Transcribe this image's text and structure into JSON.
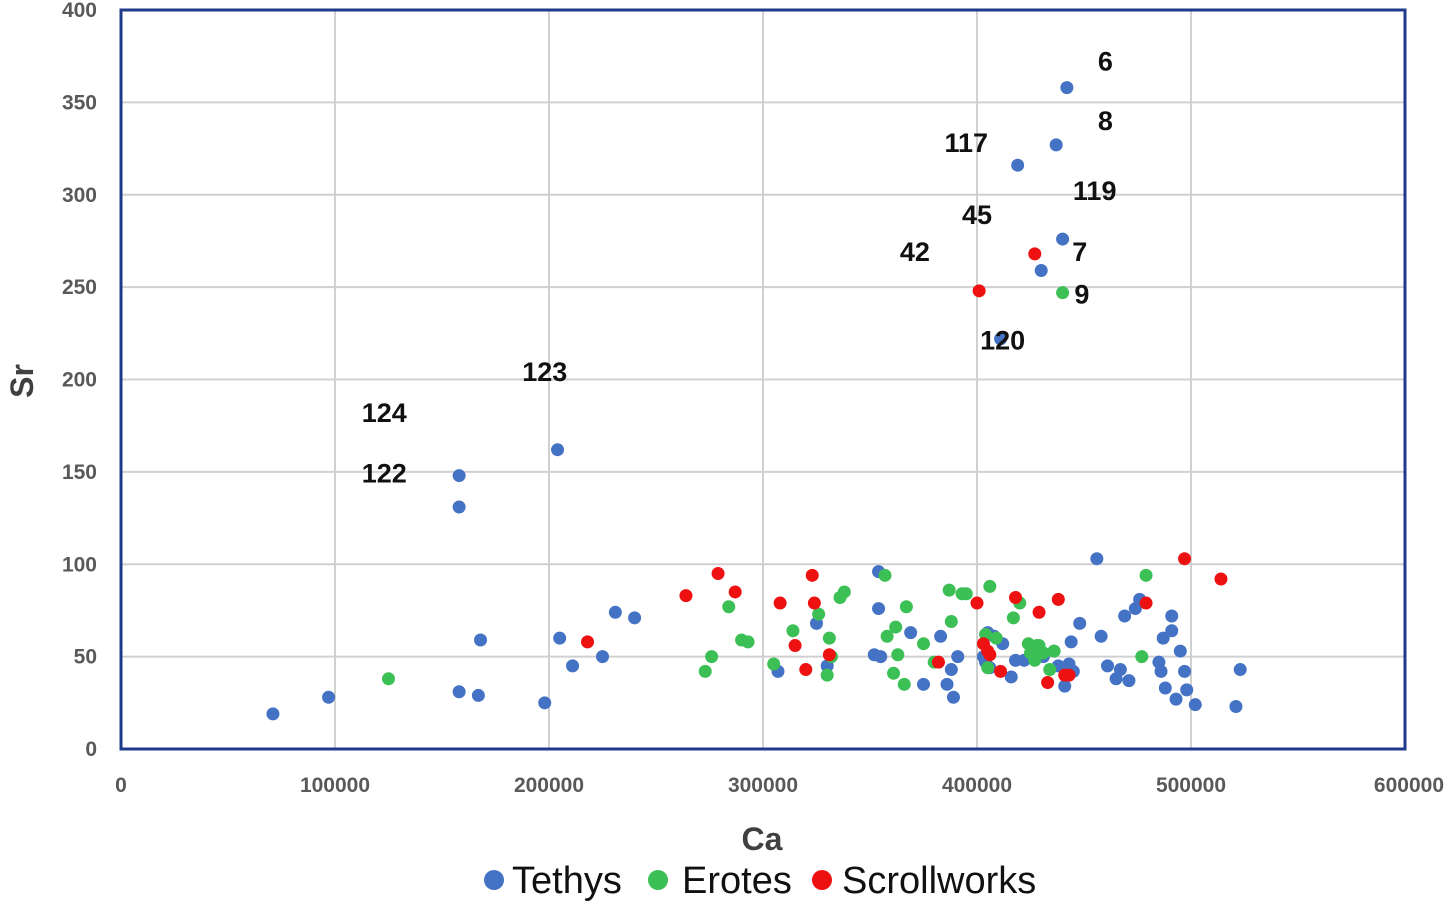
{
  "chart_data": {
    "type": "scatter",
    "title": "",
    "xlabel": "Ca",
    "ylabel": "Sr",
    "xlim": [
      0,
      600000
    ],
    "ylim": [
      0,
      400
    ],
    "x_ticks": [
      0,
      100000,
      200000,
      300000,
      400000,
      500000,
      600000
    ],
    "y_ticks": [
      0,
      50,
      100,
      150,
      200,
      250,
      300,
      350,
      400
    ],
    "x_tick_labels": [
      "0",
      "100000",
      "200000",
      "300000",
      "400000",
      "500000",
      "600000"
    ],
    "y_tick_labels": [
      "0",
      "50",
      "100",
      "150",
      "200",
      "250",
      "300",
      "350",
      "400"
    ],
    "grid": true,
    "legend_position": "bottom",
    "colors": {
      "Tethys": "#4472c4",
      "Erotes": "#3cbf54",
      "Scrollworks": "#ee1111",
      "frame": "#1f3a8a"
    },
    "series": [
      {
        "name": "Tethys",
        "points": [
          [
            71000,
            19
          ],
          [
            97000,
            28
          ],
          [
            158000,
            31
          ],
          [
            158000,
            131
          ],
          [
            158000,
            148
          ],
          [
            167000,
            29
          ],
          [
            168000,
            59
          ],
          [
            198000,
            25
          ],
          [
            204000,
            162
          ],
          [
            205000,
            60
          ],
          [
            211000,
            45
          ],
          [
            225000,
            50
          ],
          [
            231000,
            74
          ],
          [
            240000,
            71
          ],
          [
            307000,
            42
          ],
          [
            325000,
            68
          ],
          [
            330000,
            45
          ],
          [
            352000,
            51
          ],
          [
            354000,
            96
          ],
          [
            354000,
            76
          ],
          [
            355000,
            50
          ],
          [
            369000,
            63
          ],
          [
            375000,
            35
          ],
          [
            383000,
            61
          ],
          [
            386000,
            35
          ],
          [
            388000,
            43
          ],
          [
            389000,
            28
          ],
          [
            391000,
            50
          ],
          [
            403000,
            50
          ],
          [
            404000,
            47
          ],
          [
            405000,
            63
          ],
          [
            406000,
            44
          ],
          [
            408000,
            61
          ],
          [
            411000,
            222
          ],
          [
            412000,
            57
          ],
          [
            416000,
            39
          ],
          [
            418000,
            48
          ],
          [
            419000,
            316
          ],
          [
            422000,
            48
          ],
          [
            430000,
            259
          ],
          [
            431000,
            50
          ],
          [
            436000,
            53
          ],
          [
            437000,
            327
          ],
          [
            438000,
            45
          ],
          [
            440000,
            276
          ],
          [
            441000,
            34
          ],
          [
            442000,
            358
          ],
          [
            443000,
            46
          ],
          [
            444000,
            58
          ],
          [
            445000,
            42
          ],
          [
            448000,
            68
          ],
          [
            456000,
            103
          ],
          [
            458000,
            61
          ],
          [
            461000,
            45
          ],
          [
            465000,
            38
          ],
          [
            467000,
            43
          ],
          [
            469000,
            72
          ],
          [
            471000,
            37
          ],
          [
            474000,
            76
          ],
          [
            476000,
            81
          ],
          [
            485000,
            47
          ],
          [
            486000,
            42
          ],
          [
            487000,
            60
          ],
          [
            488000,
            33
          ],
          [
            491000,
            64
          ],
          [
            491000,
            72
          ],
          [
            493000,
            27
          ],
          [
            495000,
            53
          ],
          [
            497000,
            42
          ],
          [
            498000,
            32
          ],
          [
            502000,
            24
          ],
          [
            521000,
            23
          ],
          [
            523000,
            43
          ]
        ]
      },
      {
        "name": "Erotes",
        "points": [
          [
            125000,
            38
          ],
          [
            273000,
            42
          ],
          [
            276000,
            50
          ],
          [
            284000,
            77
          ],
          [
            290000,
            59
          ],
          [
            293000,
            58
          ],
          [
            305000,
            46
          ],
          [
            314000,
            64
          ],
          [
            326000,
            73
          ],
          [
            330000,
            40
          ],
          [
            331000,
            60
          ],
          [
            332000,
            50
          ],
          [
            336000,
            82
          ],
          [
            338000,
            85
          ],
          [
            357000,
            94
          ],
          [
            358000,
            61
          ],
          [
            362000,
            66
          ],
          [
            363000,
            51
          ],
          [
            361000,
            41
          ],
          [
            366000,
            35
          ],
          [
            367000,
            77
          ],
          [
            375000,
            57
          ],
          [
            380000,
            47
          ],
          [
            387000,
            86
          ],
          [
            388000,
            69
          ],
          [
            393000,
            84
          ],
          [
            395000,
            84
          ],
          [
            404000,
            62
          ],
          [
            405000,
            44
          ],
          [
            406000,
            88
          ],
          [
            409000,
            60
          ],
          [
            417000,
            71
          ],
          [
            420000,
            79
          ],
          [
            424000,
            57
          ],
          [
            425000,
            52
          ],
          [
            427000,
            48
          ],
          [
            428000,
            56
          ],
          [
            429000,
            56
          ],
          [
            431000,
            52
          ],
          [
            434000,
            43
          ],
          [
            436000,
            53
          ],
          [
            440000,
            247
          ],
          [
            477000,
            50
          ],
          [
            479000,
            94
          ]
        ]
      },
      {
        "name": "Scrollworks",
        "points": [
          [
            218000,
            58
          ],
          [
            264000,
            83
          ],
          [
            279000,
            95
          ],
          [
            287000,
            85
          ],
          [
            308000,
            79
          ],
          [
            315000,
            56
          ],
          [
            320000,
            43
          ],
          [
            323000,
            94
          ],
          [
            324000,
            79
          ],
          [
            331000,
            51
          ],
          [
            382000,
            47
          ],
          [
            400000,
            79
          ],
          [
            401000,
            248
          ],
          [
            403000,
            57
          ],
          [
            405000,
            53
          ],
          [
            406000,
            51
          ],
          [
            411000,
            42
          ],
          [
            418000,
            82
          ],
          [
            427000,
            268
          ],
          [
            429000,
            74
          ],
          [
            433000,
            36
          ],
          [
            438000,
            81
          ],
          [
            441000,
            40
          ],
          [
            443000,
            40
          ],
          [
            479000,
            79
          ],
          [
            497000,
            103
          ],
          [
            514000,
            92
          ]
        ]
      }
    ],
    "annotations": [
      {
        "text": "6",
        "x": 460000,
        "y": 372
      },
      {
        "text": "8",
        "x": 460000,
        "y": 340
      },
      {
        "text": "117",
        "x": 395000,
        "y": 328
      },
      {
        "text": "119",
        "x": 455000,
        "y": 302
      },
      {
        "text": "45",
        "x": 400000,
        "y": 289
      },
      {
        "text": "7",
        "x": 448000,
        "y": 269
      },
      {
        "text": "42",
        "x": 371000,
        "y": 269
      },
      {
        "text": "9",
        "x": 449000,
        "y": 246
      },
      {
        "text": "120",
        "x": 412000,
        "y": 221
      },
      {
        "text": "123",
        "x": 198000,
        "y": 204
      },
      {
        "text": "124",
        "x": 123000,
        "y": 182
      },
      {
        "text": "122",
        "x": 123000,
        "y": 149
      }
    ]
  }
}
